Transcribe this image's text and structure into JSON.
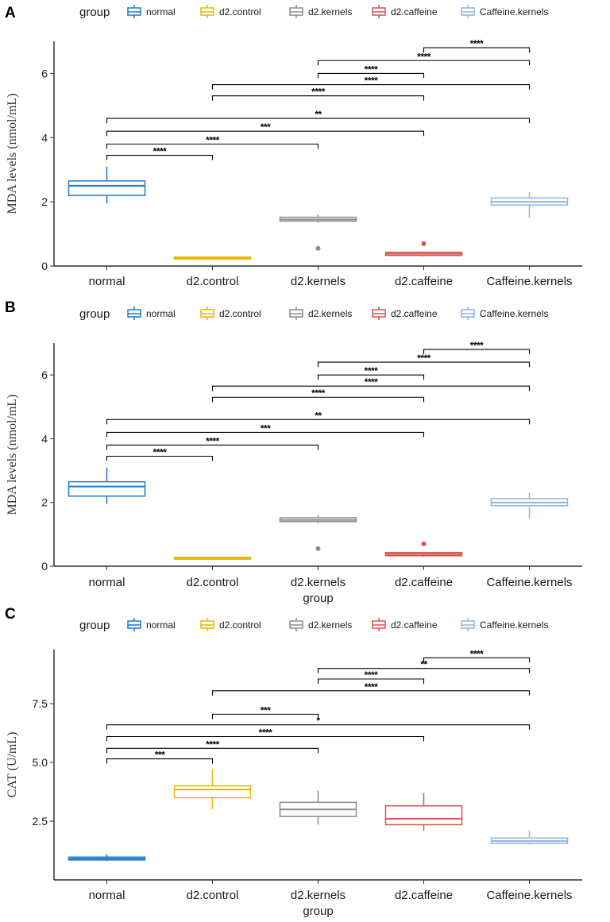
{
  "chart_data": [
    {
      "type": "box",
      "panel": "A",
      "ylabel": "MDA levels  (nmol/mL)",
      "xlabel": "",
      "ylim": [
        0,
        7
      ],
      "yticks": [
        0,
        2,
        4,
        6
      ],
      "legend_title": "group",
      "legend_position": "top",
      "categories": [
        "normal",
        "d2.control",
        "d2.kernels",
        "d2.caffeine",
        "Caffeine.kernels"
      ],
      "boxes": [
        {
          "q1": 2.2,
          "median": 2.5,
          "q3": 2.65,
          "wlo": 1.95,
          "whi": 3.1,
          "outliers": []
        },
        {
          "q1": 0.22,
          "median": 0.25,
          "q3": 0.28,
          "wlo": 0.2,
          "whi": 0.3,
          "outliers": []
        },
        {
          "q1": 1.4,
          "median": 1.45,
          "q3": 1.52,
          "wlo": 1.35,
          "whi": 1.6,
          "outliers": [
            0.55
          ]
        },
        {
          "q1": 0.33,
          "median": 0.38,
          "q3": 0.43,
          "wlo": 0.3,
          "whi": 0.45,
          "outliers": [
            0.7
          ]
        },
        {
          "q1": 1.9,
          "median": 2.0,
          "q3": 2.12,
          "wlo": 1.5,
          "whi": 2.3,
          "outliers": []
        }
      ],
      "comparisons": [
        {
          "from": 0,
          "to": 1,
          "y": 3.45,
          "label": "****"
        },
        {
          "from": 0,
          "to": 2,
          "y": 3.8,
          "label": "****"
        },
        {
          "from": 0,
          "to": 3,
          "y": 4.2,
          "label": "***"
        },
        {
          "from": 0,
          "to": 4,
          "y": 4.6,
          "label": "**"
        },
        {
          "from": 1,
          "to": 3,
          "y": 5.3,
          "label": "****"
        },
        {
          "from": 1,
          "to": 4,
          "y": 5.65,
          "label": "****"
        },
        {
          "from": 2,
          "to": 3,
          "y": 6.0,
          "label": "****"
        },
        {
          "from": 2,
          "to": 4,
          "y": 6.4,
          "label": "****"
        },
        {
          "from": 3,
          "to": 4,
          "y": 6.8,
          "label": "****"
        }
      ]
    },
    {
      "type": "box",
      "panel": "B",
      "ylabel": "MDA levels  (nmol/mL)",
      "xlabel": "group",
      "ylim": [
        0,
        7
      ],
      "yticks": [
        0,
        2,
        4,
        6
      ],
      "legend_title": "group",
      "legend_position": "top",
      "categories": [
        "normal",
        "d2.control",
        "d2.kernels",
        "d2.caffeine",
        "Caffeine.kernels"
      ],
      "boxes": [
        {
          "q1": 2.2,
          "median": 2.5,
          "q3": 2.65,
          "wlo": 1.95,
          "whi": 3.1,
          "outliers": []
        },
        {
          "q1": 0.22,
          "median": 0.25,
          "q3": 0.28,
          "wlo": 0.2,
          "whi": 0.3,
          "outliers": []
        },
        {
          "q1": 1.4,
          "median": 1.45,
          "q3": 1.52,
          "wlo": 1.35,
          "whi": 1.6,
          "outliers": [
            0.55
          ]
        },
        {
          "q1": 0.33,
          "median": 0.38,
          "q3": 0.43,
          "wlo": 0.3,
          "whi": 0.45,
          "outliers": [
            0.7
          ]
        },
        {
          "q1": 1.9,
          "median": 2.0,
          "q3": 2.12,
          "wlo": 1.5,
          "whi": 2.3,
          "outliers": []
        }
      ],
      "comparisons": [
        {
          "from": 0,
          "to": 1,
          "y": 3.45,
          "label": "****"
        },
        {
          "from": 0,
          "to": 2,
          "y": 3.8,
          "label": "****"
        },
        {
          "from": 0,
          "to": 3,
          "y": 4.2,
          "label": "***"
        },
        {
          "from": 0,
          "to": 4,
          "y": 4.6,
          "label": "**"
        },
        {
          "from": 1,
          "to": 3,
          "y": 5.3,
          "label": "****"
        },
        {
          "from": 1,
          "to": 4,
          "y": 5.65,
          "label": "****"
        },
        {
          "from": 2,
          "to": 3,
          "y": 6.0,
          "label": "****"
        },
        {
          "from": 2,
          "to": 4,
          "y": 6.4,
          "label": "****"
        },
        {
          "from": 3,
          "to": 4,
          "y": 6.8,
          "label": "****"
        }
      ]
    },
    {
      "type": "box",
      "panel": "C",
      "ylabel": "CAT (U/mL)",
      "xlabel": "group",
      "ylim": [
        0,
        9.8
      ],
      "yticks": [
        2.5,
        5.0,
        7.5
      ],
      "legend_title": "group",
      "legend_position": "top",
      "categories": [
        "normal",
        "d2.control",
        "d2.kernels",
        "d2.caffeine",
        "Caffeine.kernels"
      ],
      "boxes": [
        {
          "q1": 0.85,
          "median": 0.9,
          "q3": 0.97,
          "wlo": 0.8,
          "whi": 1.1,
          "outliers": []
        },
        {
          "q1": 3.5,
          "median": 3.85,
          "q3": 4.0,
          "wlo": 3.0,
          "whi": 4.7,
          "outliers": []
        },
        {
          "q1": 2.7,
          "median": 3.0,
          "q3": 3.3,
          "wlo": 2.35,
          "whi": 3.8,
          "outliers": []
        },
        {
          "q1": 2.35,
          "median": 2.6,
          "q3": 3.15,
          "wlo": 2.1,
          "whi": 3.7,
          "outliers": []
        },
        {
          "q1": 1.55,
          "median": 1.65,
          "q3": 1.78,
          "wlo": 1.5,
          "whi": 2.1,
          "outliers": []
        }
      ],
      "comparisons": [
        {
          "from": 0,
          "to": 1,
          "y": 5.15,
          "label": "***"
        },
        {
          "from": 0,
          "to": 2,
          "y": 5.6,
          "label": "****"
        },
        {
          "from": 0,
          "to": 3,
          "y": 6.1,
          "label": "****"
        },
        {
          "from": 0,
          "to": 4,
          "y": 6.6,
          "label": "*"
        },
        {
          "from": 1,
          "to": 2,
          "y": 7.05,
          "label": "***"
        },
        {
          "from": 1,
          "to": 4,
          "y": 8.05,
          "label": "****"
        },
        {
          "from": 2,
          "to": 3,
          "y": 8.55,
          "label": "****"
        },
        {
          "from": 2,
          "to": 4,
          "y": 9.0,
          "label": "**"
        },
        {
          "from": 3,
          "to": 4,
          "y": 9.45,
          "label": "****"
        }
      ]
    }
  ],
  "groups": [
    {
      "name": "normal",
      "color": "#1f78c8"
    },
    {
      "name": "d2.control",
      "color": "#e6b800"
    },
    {
      "name": "d2.kernels",
      "color": "#8c8c8c"
    },
    {
      "name": "d2.caffeine",
      "color": "#d9534f"
    },
    {
      "name": "Caffeine.kernels",
      "color": "#8fb4e3"
    }
  ]
}
